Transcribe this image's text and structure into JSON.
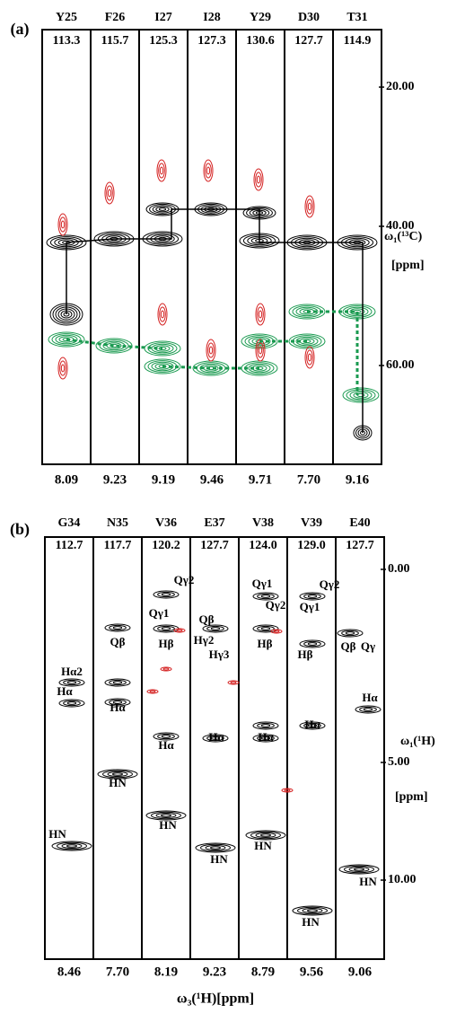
{
  "panels": [
    {
      "label": "(a)",
      "strips": [
        {
          "residue": "Y25",
          "shift": "113.3",
          "h": "8.09"
        },
        {
          "residue": "F26",
          "shift": "115.7",
          "h": "9.23"
        },
        {
          "residue": "I27",
          "shift": "125.3",
          "h": "9.19"
        },
        {
          "residue": "I28",
          "shift": "127.3",
          "h": "9.46"
        },
        {
          "residue": "Y29",
          "shift": "130.6",
          "h": "9.71"
        },
        {
          "residue": "D30",
          "shift": "127.7",
          "h": "7.70"
        },
        {
          "residue": "T31",
          "shift": "114.9",
          "h": "9.16"
        }
      ],
      "yticks": [
        "20.00",
        "40.00",
        "60.00"
      ],
      "ylabel": "ω₁(¹³C)",
      "yunit": "[ppm]"
    },
    {
      "label": "(b)",
      "strips": [
        {
          "residue": "G34",
          "shift": "112.7",
          "h": "8.46",
          "peaks": [
            "Hα2",
            "Hα",
            "HN"
          ]
        },
        {
          "residue": "N35",
          "shift": "117.7",
          "h": "7.70",
          "peaks": [
            "Qβ",
            "Hα",
            "HN"
          ]
        },
        {
          "residue": "V36",
          "shift": "120.2",
          "h": "8.19",
          "peaks": [
            "Qγ2",
            "Qγ1",
            "Hβ",
            "Hα",
            "HN"
          ]
        },
        {
          "residue": "E37",
          "shift": "127.7",
          "h": "9.23",
          "peaks": [
            "Qβ",
            "Hγ2",
            "Hγ3",
            "Hα",
            "HN"
          ]
        },
        {
          "residue": "V38",
          "shift": "124.0",
          "h": "8.79",
          "peaks": [
            "Qγ1",
            "Qγ2",
            "Hβ",
            "Hα",
            "HN"
          ]
        },
        {
          "residue": "V39",
          "shift": "129.0",
          "h": "9.56",
          "peaks": [
            "Qγ2",
            "Qγ1",
            "Hβ",
            "Hα",
            "HN"
          ]
        },
        {
          "residue": "E40",
          "shift": "127.7",
          "h": "9.06",
          "peaks": [
            "Qβ",
            "Qγ",
            "Hα",
            "HN"
          ]
        }
      ],
      "yticks": [
        "0.00",
        "5.00",
        "10.00"
      ],
      "ylabel": "ω₁(¹H)",
      "yunit": "[ppm]",
      "xlabel": "ω₃(¹H)[ppm]"
    }
  ]
}
